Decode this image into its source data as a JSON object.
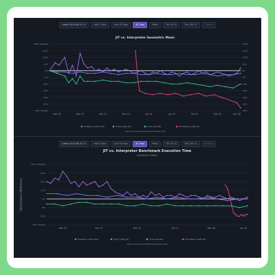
{
  "colors": {
    "blueberry": "#a06cf0",
    "fyday": "#6f7ff5",
    "jorex": "#37c58c",
    "primefieus": "#e8467e",
    "baseline": "#e9edf2",
    "grid": "#262d38"
  },
  "top": {
    "toolbar": {
      "date_range": "Latest 2024-08-01 (?)",
      "btn_last_5_days": "Last 5 Days",
      "btn_last_30_days": "Last 30 Days",
      "btn_all_time": "All Time",
      "btn_prefix": "Prefix",
      "btn_opt1": "Tier 50 (?)",
      "btn_opt2": "Tier 100 (?)",
      "btn_disabled": "Custom"
    },
    "chart_data": {
      "type": "line",
      "title": "JIT vs. Interpreter Geometric Mean",
      "footnote": "Learn more about these benchmarks here",
      "y_ticks": [
        "+20% (slower)",
        "+15%",
        "+10%",
        "+5%",
        "0%",
        "-5%",
        "-10%",
        "-15%",
        "-20%",
        "-25%",
        "-30% (faster)"
      ],
      "y_ticks_right": [
        "+20%",
        "+15%",
        "+10%",
        "+5%",
        "0%",
        "-5%",
        "-10%",
        "-15%",
        "-20%",
        "-25%",
        "-30%"
      ],
      "y_tick_values": [
        20,
        15,
        10,
        5,
        0,
        -5,
        -10,
        -15,
        -20,
        -25,
        -30
      ],
      "ylim": [
        -30,
        20
      ],
      "x_ticks": [
        "Nov 18",
        "Nov 25",
        "Dec 14",
        "Dec 23",
        "Jan 24",
        "Jan 13",
        "Feb 21",
        "Mar 02",
        "Mar 08"
      ],
      "x_range": [
        0,
        100
      ],
      "x_tick_positions": [
        4,
        16,
        28,
        40,
        52,
        64,
        76,
        88,
        98
      ],
      "legend": [
        {
          "name": "blueberry (aarch64)",
          "color_key": "blueberry"
        },
        {
          "name": "fyday (x86_64)",
          "color_key": "fyday"
        },
        {
          "name": "jorex (arm64)",
          "color_key": "jorex"
        },
        {
          "name": "primefieus (x86_64)",
          "color_key": "primefieus"
        }
      ],
      "series": [
        {
          "name": "blueberry (aarch64)",
          "color_key": "blueberry",
          "x": [
            0,
            3,
            5,
            8,
            10,
            12,
            14,
            16,
            18,
            20,
            22,
            24,
            26,
            28,
            30,
            32,
            34,
            36,
            38,
            40,
            42,
            44,
            46,
            48,
            50,
            52,
            54,
            56,
            58,
            60,
            62,
            64,
            66,
            68,
            70,
            72,
            74,
            76,
            78,
            80,
            82,
            84,
            86,
            88,
            90,
            92,
            94,
            96,
            98,
            100
          ],
          "y": [
            0,
            6,
            4,
            10,
            -2,
            4,
            -4,
            13,
            5,
            2,
            3,
            0,
            1,
            -1,
            2,
            0,
            1,
            -1,
            0,
            1,
            0,
            -2,
            -1,
            0,
            -2,
            -3,
            -1,
            -2,
            0,
            -2,
            -3,
            -1,
            -2,
            -4,
            -2,
            -1,
            -3,
            -2,
            0,
            -2,
            -1,
            -3,
            -2,
            -1,
            -2,
            -3,
            -4,
            -3,
            -2,
            2
          ]
        },
        {
          "name": "fyday (x86_64)",
          "color_key": "fyday",
          "x": [
            0,
            4,
            8,
            12,
            16,
            20,
            24,
            28,
            32,
            36,
            40,
            44,
            48,
            52,
            56,
            60,
            64,
            68,
            72,
            76,
            80,
            84,
            88,
            92,
            96,
            100
          ],
          "y": [
            0,
            -1,
            -1,
            -2,
            -1,
            -2,
            -2,
            -1,
            -2,
            -3,
            -2,
            -2,
            -3,
            -3,
            -2,
            -3,
            -3,
            -2,
            -3,
            -3,
            -2,
            -3,
            -4,
            -3,
            -3,
            -2
          ]
        },
        {
          "name": "jorex (arm64)",
          "color_key": "jorex",
          "x": [
            0,
            4,
            8,
            10,
            12,
            14,
            16,
            18,
            20,
            24,
            28,
            32,
            36,
            40,
            44,
            48,
            52,
            56,
            60,
            64,
            68,
            72,
            76,
            80,
            84,
            88,
            92,
            96,
            100
          ],
          "y": [
            0,
            -2,
            -4,
            -9,
            -6,
            -10,
            -4,
            -8,
            -8,
            -8,
            -7,
            -8,
            -8,
            -9,
            -9,
            -8,
            -8,
            -8,
            -9,
            -10,
            -10,
            -9,
            -10,
            -11,
            -12,
            -11,
            -12,
            -13,
            -10
          ]
        },
        {
          "name": "primefieus (x86_64)",
          "color_key": "primefieus",
          "x": [
            45,
            46,
            47,
            50,
            54,
            58,
            62,
            66,
            70,
            74,
            78,
            82,
            86,
            90,
            94,
            98,
            100
          ],
          "y": [
            15,
            -4,
            -15,
            -17,
            -18,
            -17,
            -18,
            -17,
            -19,
            -18,
            -17,
            -19,
            -18,
            -20,
            -22,
            -24,
            -28
          ]
        }
      ]
    }
  },
  "bottom": {
    "toolbar": {
      "date_range": "Latest 2024-08-01 (?)",
      "btn_last_5_days": "Last 5 Days",
      "btn_last_30_days": "Last 30 Days",
      "btn_all_time": "All Time",
      "btn_prefix": "Prefix",
      "btn_opt1": "Tier 50 (?)",
      "btn_opt2": "Tier 100 (?)",
      "btn_disabled": "Custom"
    },
    "chart_data": {
      "type": "line",
      "title": "JIT vs. Interpreter Benchmark Execution Time",
      "subtitle": "(Geometric Mean)",
      "ylabel": "Performance Difference",
      "footnote": "Learn more about these benchmarks here",
      "y_ticks": [
        "+20% (slower)",
        "+15%",
        "+10%",
        "+5%",
        "0%",
        "-5%",
        "-10%",
        "-15% (faster)"
      ],
      "y_tick_values": [
        20,
        15,
        10,
        5,
        0,
        -5,
        -10,
        -15
      ],
      "ylim": [
        -15,
        20
      ],
      "x_ticks": [
        "Nov 30",
        "Dec 07",
        "Dec 14",
        "Dec 21",
        "Dec 28",
        "Jan 04"
      ],
      "x_range": [
        0,
        100
      ],
      "x_tick_positions": [
        8,
        26,
        45,
        64,
        82,
        98
      ],
      "legend": [
        {
          "name": "blueberry (aarch64)",
          "color_key": "blueberry"
        },
        {
          "name": "fyday (x86_64)",
          "color_key": "fyday"
        },
        {
          "name": "jorex (arm64)",
          "color_key": "jorex"
        },
        {
          "name": "primefieus (x86_64)",
          "color_key": "primefieus"
        }
      ],
      "series": [
        {
          "name": "blueberry (aarch64)",
          "color_key": "blueberry",
          "x": [
            0,
            2,
            4,
            6,
            8,
            10,
            12,
            14,
            16,
            18,
            20,
            22,
            24,
            26,
            28,
            30,
            32,
            34,
            36,
            38,
            40,
            42,
            44,
            46,
            48,
            50,
            52,
            54,
            56,
            58,
            60,
            62,
            64,
            66,
            68,
            70,
            72,
            74,
            76,
            78,
            80,
            82,
            84,
            86,
            88,
            90,
            92,
            94,
            96,
            98,
            100
          ],
          "y": [
            10,
            9,
            12,
            11,
            16,
            13,
            9,
            10,
            7,
            10,
            8,
            9,
            10,
            7,
            8,
            10,
            6,
            4,
            3,
            2,
            4,
            2,
            3,
            1,
            2,
            1,
            4,
            2,
            3,
            1,
            2,
            2,
            1,
            3,
            2,
            1,
            2,
            2,
            1,
            0,
            2,
            1,
            1,
            2,
            1,
            0,
            1,
            0,
            -1,
            0,
            1
          ]
        },
        {
          "name": "fyday (x86_64)",
          "color_key": "fyday",
          "x": [
            0,
            5,
            10,
            15,
            20,
            25,
            30,
            35,
            40,
            45,
            50,
            55,
            60,
            65,
            70,
            75,
            80,
            85,
            90,
            95,
            100
          ],
          "y": [
            3,
            3,
            2,
            3,
            2,
            2,
            1,
            2,
            1,
            1,
            0,
            1,
            0,
            1,
            0,
            0,
            1,
            0,
            -1,
            0,
            0
          ]
        },
        {
          "name": "jorex (arm64)",
          "color_key": "jorex",
          "x": [
            0,
            4,
            8,
            12,
            16,
            20,
            24,
            28,
            32,
            36,
            40,
            44,
            48,
            52,
            56,
            60,
            64,
            68,
            72,
            76,
            80,
            84,
            88,
            92,
            96,
            100
          ],
          "y": [
            -3,
            -3,
            -4,
            -3,
            -2,
            -2,
            -3,
            -3,
            -3,
            -3,
            -4,
            -4,
            -3,
            -4,
            -4,
            -3,
            -4,
            -4,
            -4,
            -4,
            -4,
            -4,
            -4,
            -4,
            -5,
            -4
          ]
        },
        {
          "name": "primefieus (x86_64)",
          "color_key": "primefieus",
          "x": [
            89,
            90,
            91,
            92,
            93,
            94,
            95,
            96,
            97,
            98,
            99,
            100
          ],
          "y": [
            8,
            6,
            2,
            -3,
            -8,
            -9,
            -10,
            -10,
            -9,
            -10,
            -9,
            -9
          ]
        }
      ]
    }
  }
}
